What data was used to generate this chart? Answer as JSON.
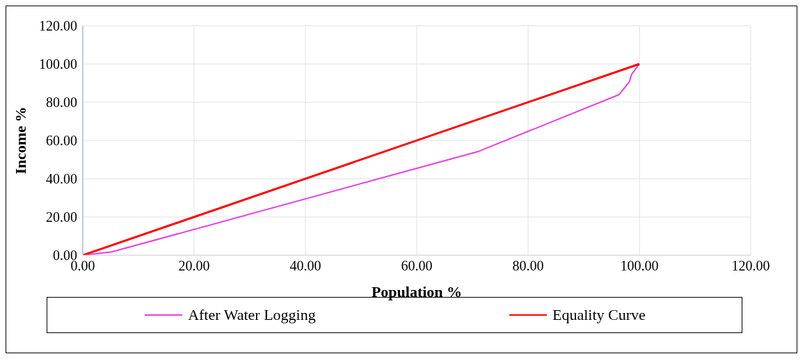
{
  "chart_data": {
    "type": "line",
    "xlabel": "Population %",
    "ylabel": "Income %",
    "xlim": [
      0,
      120
    ],
    "xticks": [
      {
        "value": 0,
        "label": "0.00"
      },
      {
        "value": 20,
        "label": "20.00"
      },
      {
        "value": 40,
        "label": "40.00"
      },
      {
        "value": 60,
        "label": "60.00"
      },
      {
        "value": 80,
        "label": "80.00"
      },
      {
        "value": 100,
        "label": "100.00"
      },
      {
        "value": 120,
        "label": "120.00"
      }
    ],
    "ylim": [
      0,
      120
    ],
    "yticks": [
      {
        "value": 0,
        "label": "0.00"
      },
      {
        "value": 20,
        "label": "20.00"
      },
      {
        "value": 40,
        "label": "40.00"
      },
      {
        "value": 60,
        "label": "60.00"
      },
      {
        "value": 80,
        "label": "80.00"
      },
      {
        "value": 100,
        "label": "100.00"
      },
      {
        "value": 120,
        "label": "120.00"
      }
    ],
    "grid": true,
    "legend": "bottom",
    "marker": "none",
    "series": [
      {
        "name": "After Water Logging",
        "color": "#e83de0",
        "x": [
          0,
          5.2,
          71.1,
          96.3,
          98.2,
          98.6,
          100
        ],
        "values": [
          0,
          1.7,
          54.3,
          83.9,
          90.7,
          94.6,
          100
        ]
      },
      {
        "name": "Equality Curve",
        "color": "#ff0000",
        "x": [
          0,
          100
        ],
        "values": [
          0,
          100
        ]
      }
    ]
  }
}
